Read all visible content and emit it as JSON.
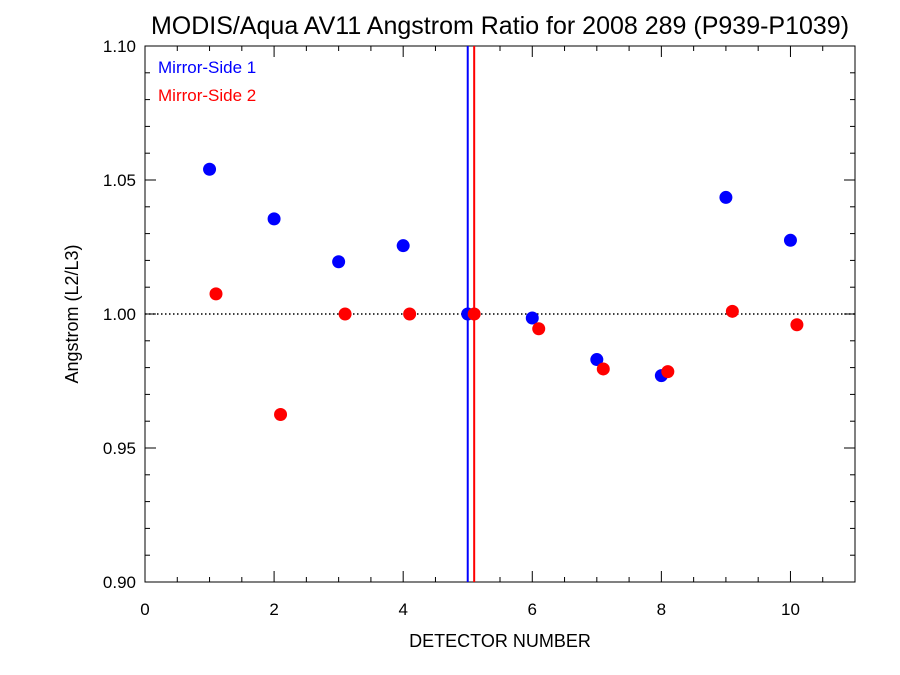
{
  "chart_data": {
    "type": "scatter",
    "title": "MODIS/Aqua AV11 Angstrom Ratio for 2008 289 (P939-P1039)",
    "xlabel": "DETECTOR NUMBER",
    "ylabel": "Angstrom (L2/L3)",
    "xlim": [
      0,
      11
    ],
    "ylim": [
      0.9,
      1.1
    ],
    "x_ticks": [
      0,
      2,
      4,
      6,
      8,
      10
    ],
    "x_tick_labels": [
      "0",
      "2",
      "4",
      "6",
      "8",
      "10"
    ],
    "y_ticks": [
      0.9,
      0.95,
      1.0,
      1.05,
      1.1
    ],
    "y_tick_labels": [
      "0.90",
      "0.95",
      "1.00",
      "1.05",
      "1.10"
    ],
    "reference_line": {
      "y": 1.0,
      "style": "dotted"
    },
    "vertical_lines": [
      {
        "x": 5.0,
        "color": "#0000ff"
      },
      {
        "x": 5.1,
        "color": "#ff0000"
      }
    ],
    "legend_position": "top-left",
    "grid": false,
    "series": [
      {
        "name": "Mirror-Side 1",
        "color": "#0000ff",
        "x": [
          1,
          2,
          3,
          4,
          5,
          6,
          7,
          8,
          9,
          10
        ],
        "y": [
          1.054,
          1.0355,
          1.0195,
          1.0255,
          1.0,
          0.9985,
          0.983,
          0.977,
          1.0435,
          1.0275
        ]
      },
      {
        "name": "Mirror-Side 2",
        "color": "#ff0000",
        "x": [
          1.1,
          2.1,
          3.1,
          4.1,
          5.1,
          6.1,
          7.1,
          8.1,
          9.1,
          10.1
        ],
        "y": [
          1.0075,
          0.9625,
          1.0,
          1.0,
          1.0,
          0.9945,
          0.9795,
          0.9785,
          1.001,
          0.996
        ]
      }
    ]
  }
}
